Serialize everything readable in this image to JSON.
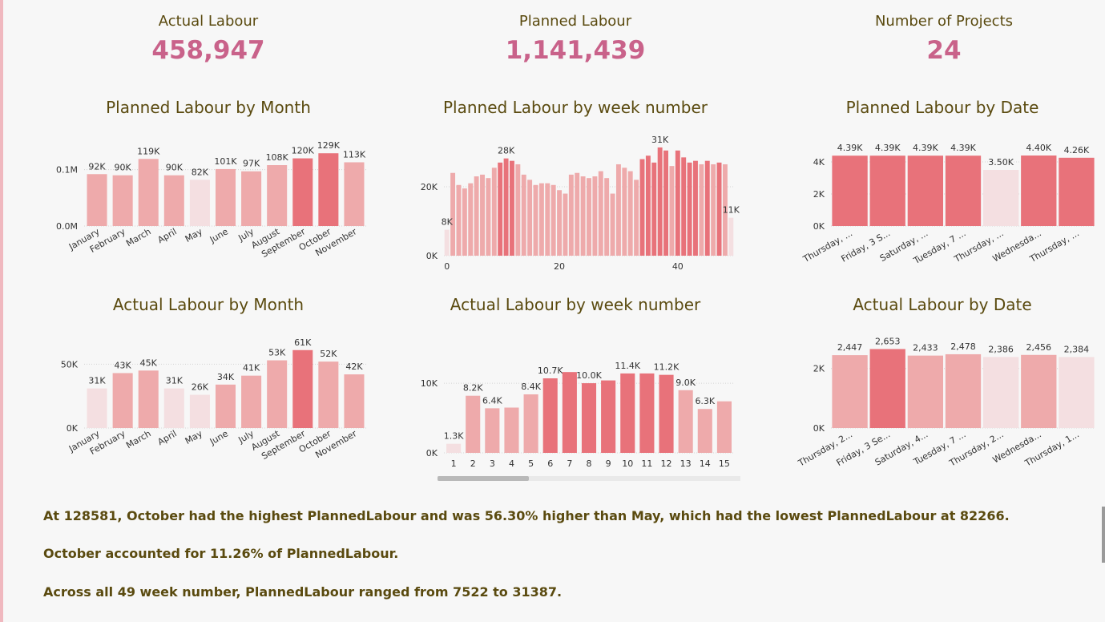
{
  "kpis": {
    "actual": {
      "label": "Actual Labour",
      "value": "458,947"
    },
    "planned": {
      "label": "Planned Labour",
      "value": "1,141,439"
    },
    "projects": {
      "label": "Number of Projects",
      "value": "24"
    }
  },
  "colors": {
    "light": "#f4dfe1",
    "mid": "#eeaaab",
    "dark": "#e8727a",
    "text": "#5a4a0f",
    "kpi": "#c9628a"
  },
  "chart_data": [
    {
      "id": "planned-by-month",
      "type": "bar",
      "title": "Planned Labour by Month",
      "categories": [
        "January",
        "February",
        "March",
        "April",
        "May",
        "June",
        "July",
        "August",
        "September",
        "October",
        "November"
      ],
      "values": [
        92000,
        90000,
        119000,
        90000,
        82000,
        101000,
        97000,
        108000,
        120000,
        129000,
        113000
      ],
      "data_labels": [
        "92K",
        "90K",
        "119K",
        "90K",
        "82K",
        "101K",
        "97K",
        "108K",
        "120K",
        "129K",
        "113K"
      ],
      "y_ticks": [
        {
          "value": 0,
          "label": "0.0M"
        },
        {
          "value": 100000,
          "label": "0.1M"
        }
      ],
      "ylim": [
        0,
        135000
      ],
      "grid": true
    },
    {
      "id": "planned-by-week",
      "type": "bar",
      "title": "Planned Labour by week number",
      "x": [
        1,
        2,
        3,
        4,
        5,
        6,
        7,
        8,
        9,
        10,
        11,
        12,
        13,
        14,
        15,
        16,
        17,
        18,
        19,
        20,
        21,
        22,
        23,
        24,
        25,
        26,
        27,
        28,
        29,
        30,
        31,
        32,
        33,
        34,
        35,
        36,
        37,
        38,
        39,
        40,
        41,
        42,
        43,
        44,
        45,
        46,
        47,
        48,
        49
      ],
      "values": [
        7522,
        24000,
        20500,
        19500,
        21000,
        23000,
        23500,
        22500,
        25500,
        27000,
        28200,
        27500,
        26500,
        23500,
        22000,
        20500,
        21000,
        21000,
        20500,
        19000,
        18000,
        23500,
        24000,
        23000,
        22500,
        23000,
        24500,
        22500,
        18000,
        26500,
        25500,
        24500,
        22000,
        28000,
        29000,
        27000,
        31387,
        30500,
        26000,
        30500,
        28500,
        27000,
        27500,
        26500,
        27500,
        26500,
        27000,
        26500,
        11000
      ],
      "data_labels": [
        {
          "index": 0,
          "text": "8K"
        },
        {
          "index": 10,
          "text": "28K"
        },
        {
          "index": 36,
          "text": "31K"
        },
        {
          "index": 48,
          "text": "11K"
        }
      ],
      "y_ticks": [
        {
          "value": 0,
          "label": "0K"
        },
        {
          "value": 20000,
          "label": "20K"
        }
      ],
      "x_ticks": [
        {
          "value": 1,
          "label": "0"
        },
        {
          "value": 20,
          "label": "20"
        },
        {
          "value": 40,
          "label": "40"
        }
      ],
      "ylim": [
        0,
        33000
      ],
      "grid": true
    },
    {
      "id": "planned-by-date",
      "type": "bar",
      "title": "Planned Labour by Date",
      "categories": [
        "Thursday, ...",
        "Friday, 3 S...",
        "Saturday, ...",
        "Tuesday, 7 ...",
        "Thursday, ...",
        "Wednesda...",
        "Thursday, ..."
      ],
      "values": [
        4390,
        4390,
        4390,
        4390,
        3500,
        4400,
        4260
      ],
      "data_labels": [
        "4.39K",
        "4.39K",
        "4.39K",
        "4.39K",
        "3.50K",
        "4.40K",
        "4.26K"
      ],
      "y_ticks": [
        {
          "value": 0,
          "label": "0K"
        },
        {
          "value": 2000,
          "label": "2K"
        },
        {
          "value": 4000,
          "label": "4K"
        }
      ],
      "ylim": [
        0,
        4600
      ],
      "grid": true
    },
    {
      "id": "actual-by-month",
      "type": "bar",
      "title": "Actual Labour by Month",
      "categories": [
        "January",
        "February",
        "March",
        "April",
        "May",
        "June",
        "July",
        "August",
        "September",
        "October",
        "November"
      ],
      "values": [
        31000,
        43000,
        45000,
        31000,
        26000,
        34000,
        41000,
        53000,
        61000,
        52000,
        42000
      ],
      "data_labels": [
        "31K",
        "43K",
        "45K",
        "31K",
        "26K",
        "34K",
        "41K",
        "53K",
        "61K",
        "52K",
        "42K"
      ],
      "y_ticks": [
        {
          "value": 0,
          "label": "0K"
        },
        {
          "value": 50000,
          "label": "50K"
        }
      ],
      "ylim": [
        0,
        64000
      ],
      "grid": true
    },
    {
      "id": "actual-by-week",
      "type": "bar",
      "title": "Actual Labour by week number",
      "categories": [
        "1",
        "2",
        "3",
        "4",
        "5",
        "6",
        "7",
        "8",
        "9",
        "10",
        "11",
        "12",
        "13",
        "14",
        "15"
      ],
      "values": [
        1300,
        8200,
        6400,
        6500,
        8400,
        10700,
        11600,
        10000,
        10400,
        11400,
        11400,
        11200,
        9000,
        6300,
        7400
      ],
      "data_labels": [
        "1.3K",
        "8.2K",
        "6.4K",
        "",
        "8.4K",
        "10.7K",
        "",
        "10.0K",
        "",
        "11.4K",
        "",
        "11.2K",
        "9.0K",
        "6.3K",
        ""
      ],
      "y_ticks": [
        {
          "value": 0,
          "label": "0K"
        },
        {
          "value": 10000,
          "label": "10K"
        }
      ],
      "ylim": [
        0,
        13000
      ],
      "grid": true
    },
    {
      "id": "actual-by-date",
      "type": "bar",
      "title": "Actual Labour by Date",
      "categories": [
        "Thursday, 2...",
        "Friday, 3 Se...",
        "Saturday, 4...",
        "Tuesday, 7 ...",
        "Thursday, 2...",
        "Wednesda...",
        "Thursday, 1..."
      ],
      "values": [
        2447,
        2653,
        2433,
        2478,
        2386,
        2456,
        2384
      ],
      "data_labels": [
        "2,447",
        "2,653",
        "2,433",
        "2,478",
        "2,386",
        "2,456",
        "2,384"
      ],
      "y_ticks": [
        {
          "value": 0,
          "label": "0K"
        },
        {
          "value": 2000,
          "label": "2K"
        }
      ],
      "ylim": [
        0,
        2800
      ],
      "grid": true
    }
  ],
  "insights": [
    "At 128581, October had the highest PlannedLabour and was 56.30% higher than May, which had the lowest PlannedLabour at 82266.",
    "October accounted for 11.26% of PlannedLabour.",
    "Across all 49 week number, PlannedLabour ranged from 7522 to 31387."
  ]
}
